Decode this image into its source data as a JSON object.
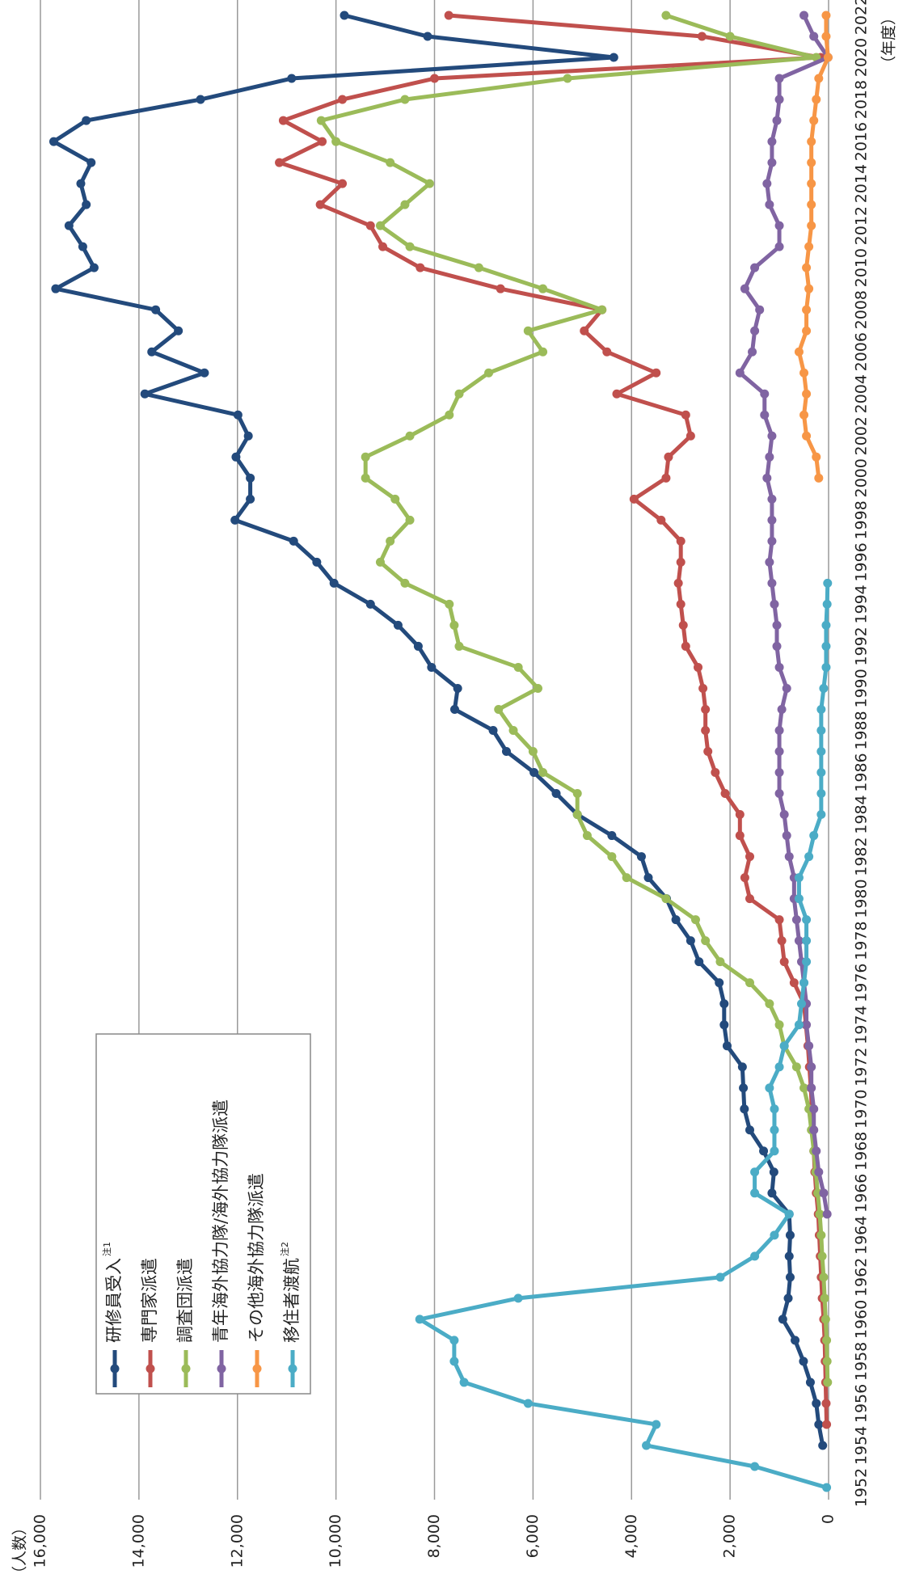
{
  "chart_data": {
    "type": "line",
    "y_axis_label": "（人数）",
    "x_axis_label": "（年度）",
    "x": [
      1952,
      1953,
      1954,
      1955,
      1956,
      1957,
      1958,
      1959,
      1960,
      1961,
      1962,
      1963,
      1964,
      1965,
      1966,
      1967,
      1968,
      1969,
      1970,
      1971,
      1972,
      1973,
      1974,
      1975,
      1976,
      1977,
      1978,
      1979,
      1980,
      1981,
      1982,
      1983,
      1984,
      1985,
      1986,
      1987,
      1988,
      1989,
      1990,
      1991,
      1992,
      1993,
      1994,
      1995,
      1996,
      1997,
      1998,
      1999,
      2000,
      2001,
      2002,
      2003,
      2004,
      2005,
      2006,
      2007,
      2008,
      2009,
      2010,
      2011,
      2012,
      2013,
      2014,
      2015,
      2016,
      2017,
      2018,
      2019,
      2020,
      2021,
      2022
    ],
    "xlim": [
      1952,
      2022
    ],
    "xticks": [
      1952,
      1954,
      1956,
      1958,
      1960,
      1962,
      1964,
      1966,
      1968,
      1970,
      1972,
      1974,
      1976,
      1978,
      1980,
      1982,
      1984,
      1986,
      1988,
      1990,
      1992,
      1994,
      1996,
      1998,
      2000,
      2002,
      2004,
      2006,
      2008,
      2010,
      2012,
      2014,
      2016,
      2018,
      2020,
      2022
    ],
    "ylim": [
      0,
      16000
    ],
    "yticks": [
      0,
      {
        "value": 2000,
        "label": "2,000"
      },
      {
        "value": 4000,
        "label": "4,000"
      },
      {
        "value": 6000,
        "label": "6,000"
      },
      {
        "value": 8000,
        "label": "8,000"
      },
      {
        "value": 10000,
        "label": "10,000"
      },
      {
        "value": 12000,
        "label": "12,000"
      },
      {
        "value": 14000,
        "label": "14,000"
      },
      {
        "value": 16000,
        "label": "16,000"
      }
    ],
    "grid": true,
    "legend": "upper left",
    "rotation": -90,
    "series": [
      {
        "name": "研修員受入",
        "note": "注1",
        "color": "#234a7c",
        "values": [
          null,
          null,
          120,
          200,
          250,
          370,
          510,
          680,
          930,
          820,
          780,
          800,
          780,
          800,
          1150,
          1110,
          1320,
          1600,
          1710,
          1730,
          1750,
          2060,
          2120,
          2120,
          2220,
          2630,
          2800,
          3100,
          3290,
          3660,
          3800,
          4400,
          5100,
          5530,
          5980,
          6540,
          6810,
          7590,
          7530,
          8060,
          8330,
          8740,
          9300,
          10040,
          10390,
          10860,
          12050,
          11740,
          11740,
          12030,
          11780,
          11990,
          13880,
          12670,
          13740,
          13200,
          13660,
          15690,
          14910,
          15140,
          15420,
          15070,
          15180,
          14970,
          15730,
          15070,
          12750,
          10900,
          4360,
          8140,
          9830
        ]
      },
      {
        "name": "専門家派遣",
        "color": "#c0504d",
        "values": [
          null,
          null,
          null,
          40,
          50,
          60,
          70,
          80,
          100,
          130,
          150,
          170,
          190,
          210,
          250,
          280,
          300,
          320,
          340,
          360,
          390,
          420,
          460,
          500,
          700,
          900,
          950,
          1000,
          1600,
          1700,
          1600,
          1800,
          1800,
          2100,
          2300,
          2450,
          2500,
          2500,
          2550,
          2650,
          2900,
          2950,
          3000,
          3050,
          3000,
          3000,
          3400,
          3950,
          3300,
          3250,
          2800,
          2900,
          4300,
          3500,
          4500,
          4960,
          4600,
          6660,
          8290,
          9050,
          9300,
          10320,
          9870,
          11150,
          10280,
          11070,
          9870,
          8000,
          160,
          2570,
          7710
        ]
      },
      {
        "name": "調査団派遣",
        "color": "#9bbb59",
        "values": [
          null,
          null,
          null,
          null,
          null,
          20,
          30,
          40,
          60,
          80,
          100,
          130,
          150,
          180,
          220,
          260,
          300,
          350,
          400,
          500,
          650,
          900,
          1000,
          1200,
          1600,
          2200,
          2500,
          2700,
          3300,
          4100,
          4400,
          4900,
          5100,
          5100,
          5800,
          6000,
          6400,
          6700,
          5900,
          6300,
          7500,
          7600,
          7700,
          8600,
          9100,
          8900,
          8500,
          8800,
          9400,
          9400,
          8500,
          7700,
          7500,
          6900,
          5800,
          6100,
          4600,
          5800,
          7100,
          8500,
          9100,
          8600,
          8100,
          8900,
          10000,
          10300,
          8600,
          5300,
          250,
          2000,
          3300
        ]
      },
      {
        "name": "青年海外協力隊/海外協力隊派遣",
        "color": "#8064a2",
        "values": [
          null,
          null,
          null,
          null,
          null,
          null,
          null,
          null,
          null,
          null,
          null,
          null,
          null,
          30,
          100,
          200,
          250,
          300,
          300,
          350,
          350,
          400,
          450,
          450,
          500,
          550,
          600,
          650,
          700,
          700,
          800,
          850,
          900,
          1000,
          1000,
          1000,
          1000,
          950,
          850,
          1000,
          1050,
          1050,
          1100,
          1150,
          1200,
          1150,
          1150,
          1150,
          1250,
          1200,
          1150,
          1300,
          1300,
          1800,
          1550,
          1500,
          1400,
          1700,
          1500,
          1000,
          1000,
          1200,
          1250,
          1150,
          1150,
          1050,
          1000,
          1000,
          10,
          300,
          500
        ]
      },
      {
        "name": "その他海外協力隊派遣",
        "color": "#f79646",
        "values": [
          null,
          null,
          null,
          null,
          null,
          null,
          null,
          null,
          null,
          null,
          null,
          null,
          null,
          null,
          null,
          null,
          null,
          null,
          null,
          null,
          null,
          null,
          null,
          null,
          null,
          null,
          null,
          null,
          null,
          null,
          null,
          null,
          null,
          null,
          null,
          null,
          null,
          null,
          null,
          null,
          null,
          null,
          null,
          null,
          null,
          null,
          null,
          null,
          200,
          250,
          450,
          500,
          450,
          500,
          600,
          450,
          450,
          400,
          450,
          400,
          350,
          350,
          350,
          350,
          350,
          300,
          250,
          200,
          10,
          50,
          50
        ]
      },
      {
        "name": "移住者渡航",
        "note": "注2",
        "color": "#4bacc6",
        "values": [
          40,
          1500,
          3700,
          3500,
          6100,
          7400,
          7600,
          7600,
          8300,
          6300,
          2200,
          1500,
          1100,
          800,
          1500,
          1500,
          1100,
          1100,
          1100,
          1200,
          1000,
          900,
          600,
          550,
          500,
          450,
          450,
          450,
          600,
          600,
          400,
          300,
          150,
          150,
          150,
          150,
          150,
          150,
          100,
          50,
          50,
          50,
          30,
          20,
          null,
          null,
          null,
          null,
          null,
          null,
          null,
          null,
          null,
          null,
          null,
          null,
          null,
          null,
          null,
          null,
          null,
          null,
          null,
          null,
          null,
          null,
          null,
          null,
          null,
          null,
          null
        ]
      }
    ]
  }
}
